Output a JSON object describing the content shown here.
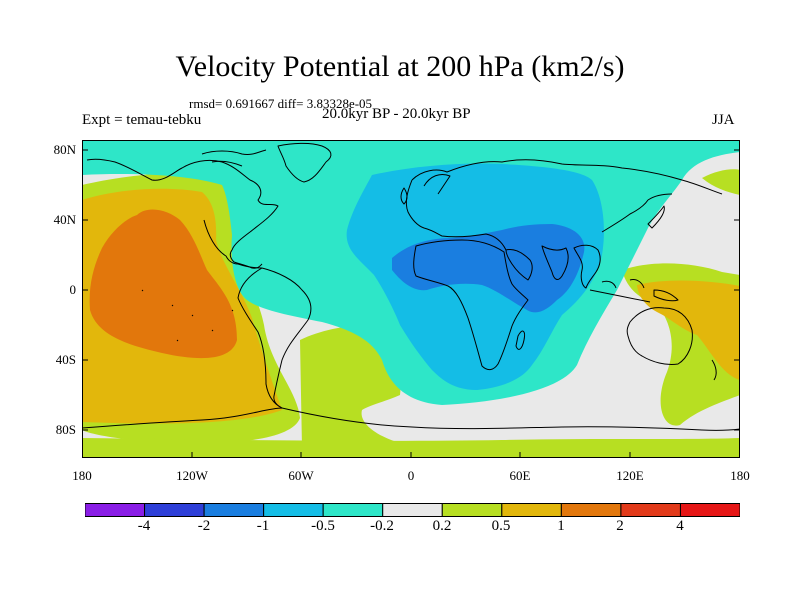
{
  "title": "Velocity Potential at 200 hPa (km2/s)",
  "stats_line": "rmsd= 0.691667 diff= 3.83328e-05",
  "experiment": "Expt = temau-tebku",
  "period": "20.0kyr BP - 20.0kyr BP",
  "season": "JJA",
  "map": {
    "projection": "cylindrical equidistant",
    "lon_range": [
      -180,
      180
    ],
    "lat_range": [
      -90,
      90
    ],
    "y_tick_labels": [
      "80N",
      "40N",
      "0",
      "40S",
      "80S"
    ],
    "x_tick_labels": [
      "180",
      "120W",
      "60W",
      "0",
      "60E",
      "120E",
      "180"
    ]
  },
  "colorbar": {
    "colors": [
      "#8a1ee6",
      "#2e3fd8",
      "#1a7ee0",
      "#14bde6",
      "#2ee6c8",
      "#e9e9e9",
      "#b7df22",
      "#e2b70c",
      "#e2770c",
      "#e23a1a",
      "#e61616"
    ],
    "labels": [
      "-4",
      "-2",
      "-1",
      "-0.5",
      "-0.2",
      "0.2",
      "0.5",
      "1",
      "2",
      "4"
    ]
  }
}
